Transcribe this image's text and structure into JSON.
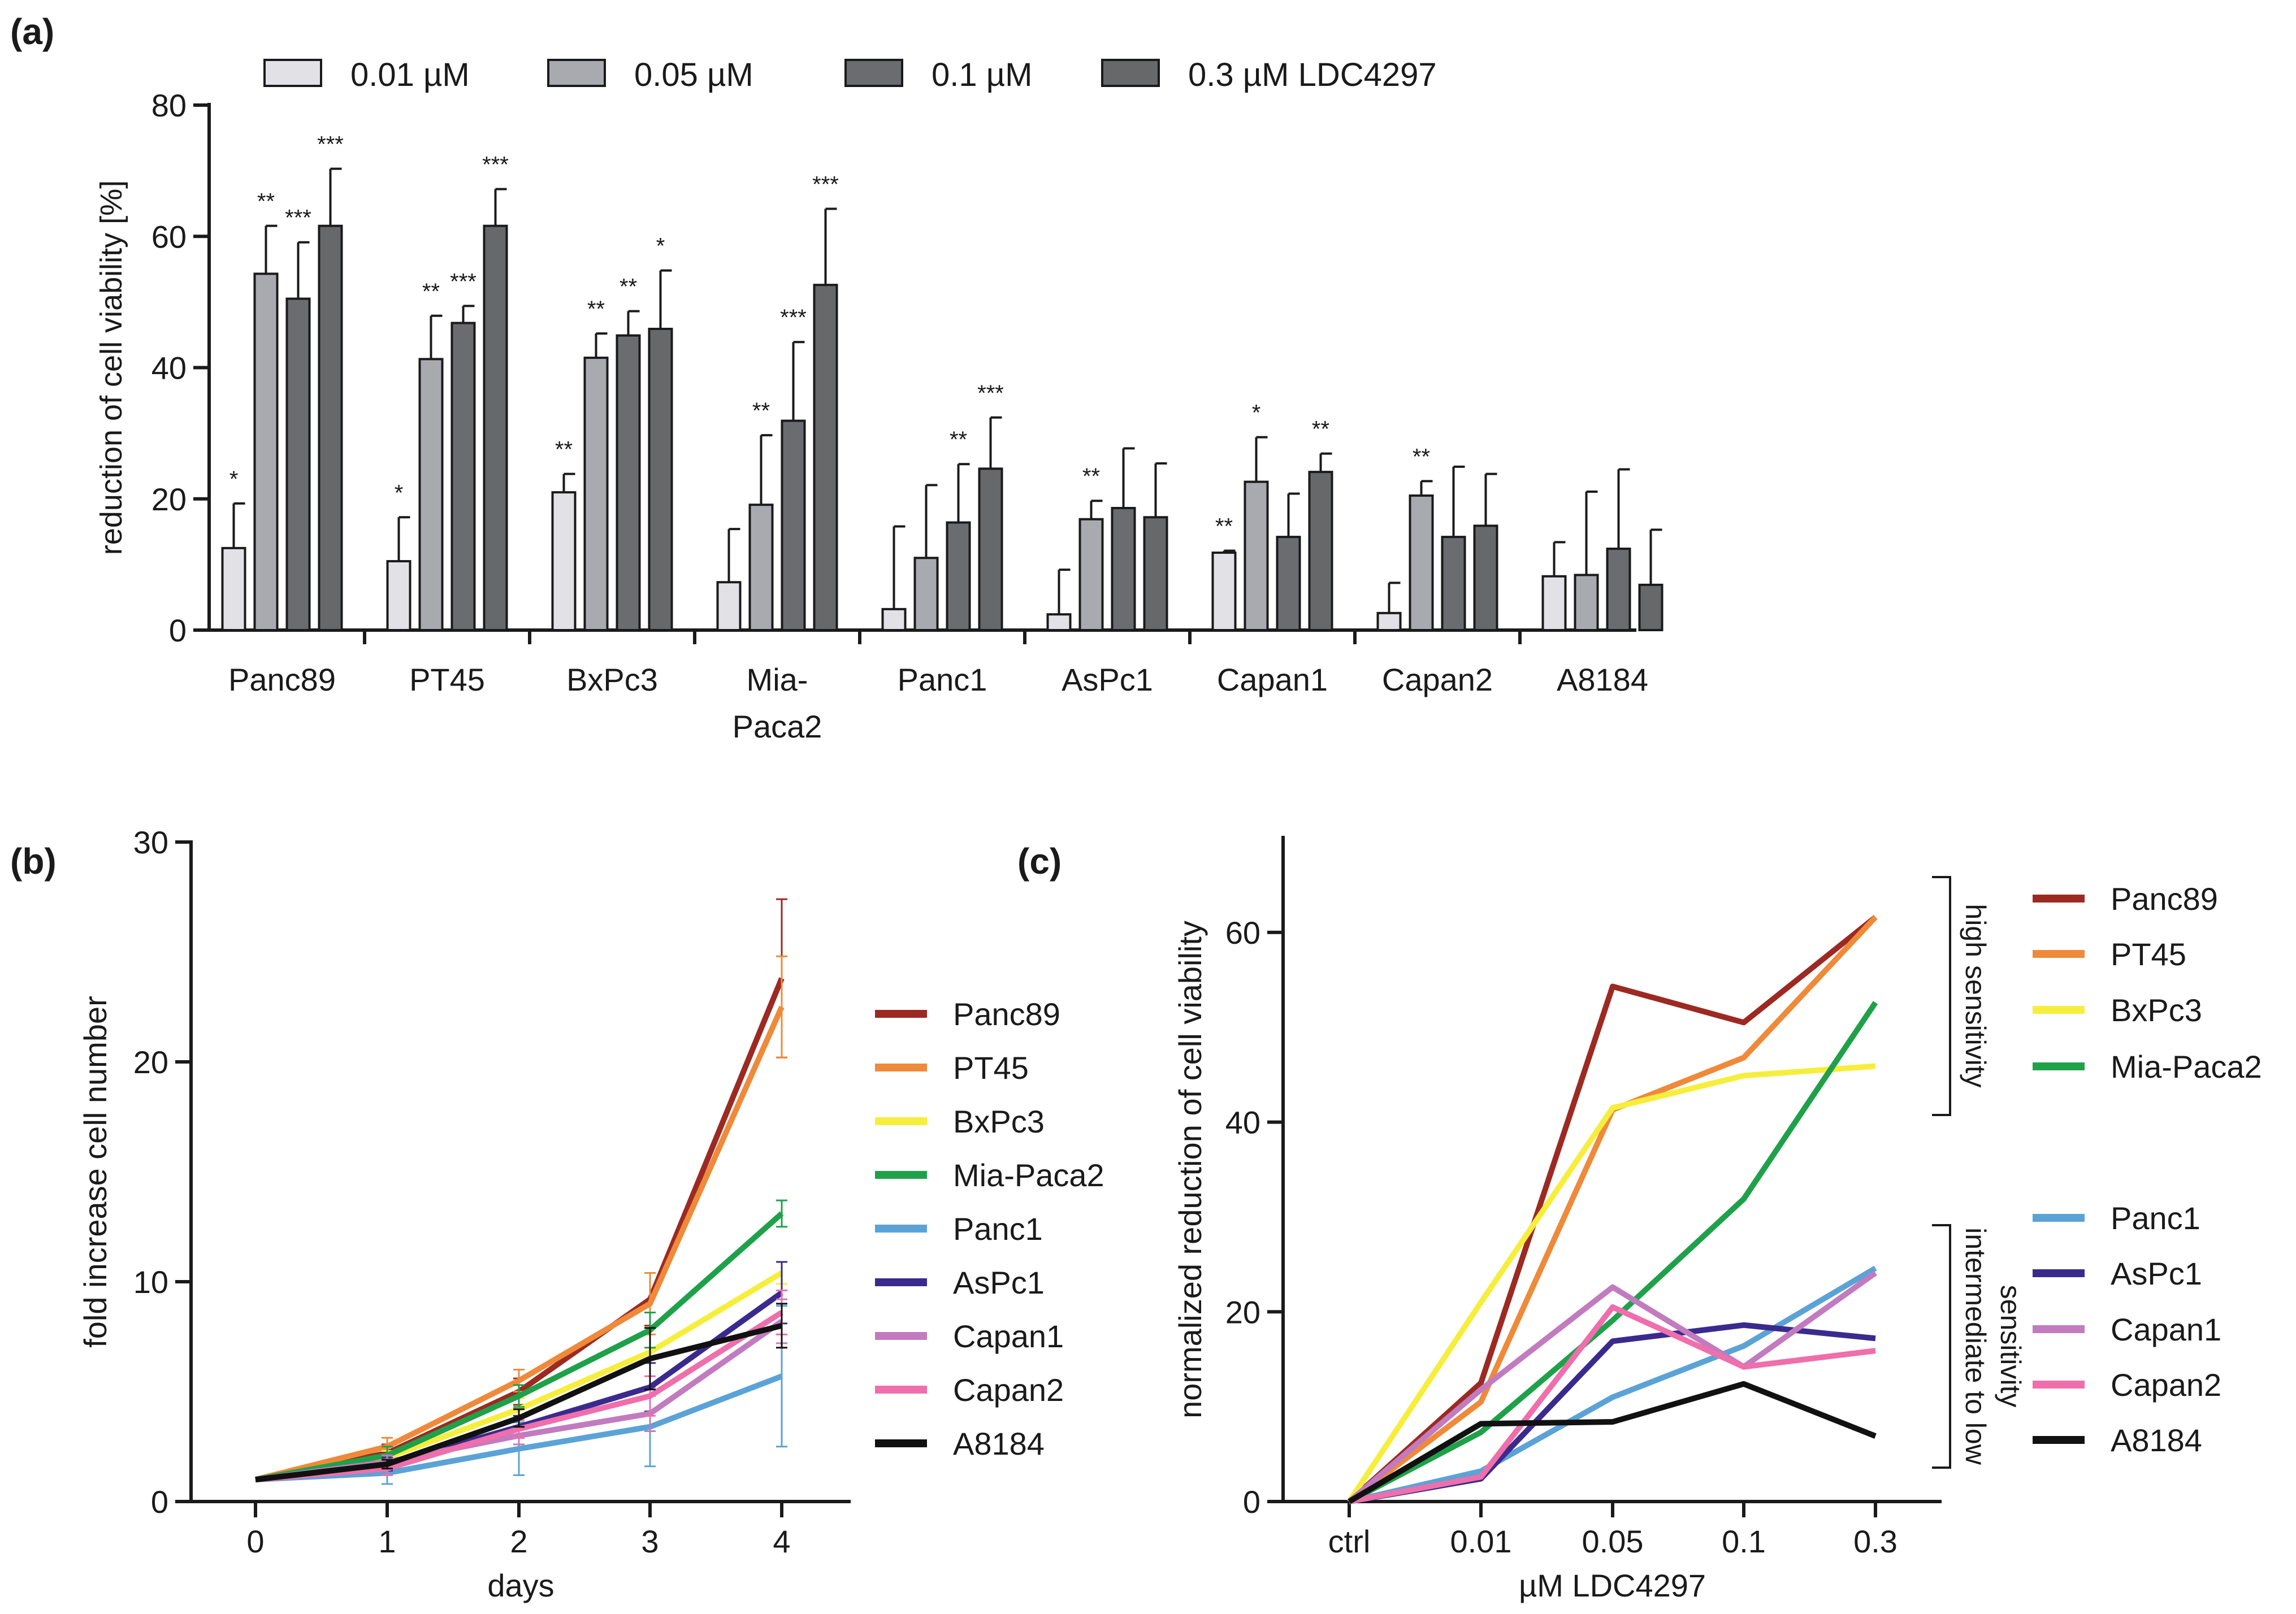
{
  "colors": {
    "c001": "#e2e2e6",
    "c005": "#a9aab0",
    "c01": "#6a6c6f",
    "c03": "#66686a",
    "Panc89": "#9c2a22",
    "PT45": "#ee8a3a",
    "BxPc3": "#f6ee3c",
    "Mia-Paca2": "#1fa14a",
    "Panc1": "#5ba3d6",
    "AsPc1": "#3b2a8e",
    "Capan1": "#c27bbf",
    "Capan2": "#ee6fab",
    "A8184": "#111111"
  },
  "chart_data": [
    {
      "panel": "(a)",
      "type": "bar",
      "ylabel": "reduction of cell viability [%]",
      "xlabel": "",
      "ylim": [
        0,
        80
      ],
      "yticks": [
        "0",
        "20",
        "40",
        "60",
        "80"
      ],
      "legend_position": "top",
      "legend": [
        "0.01 µM",
        "0.05 µM",
        "0.1 µM",
        "0.3 µM  LDC4297"
      ],
      "categories": [
        {
          "line1": "Panc89",
          "line2": ""
        },
        {
          "line1": "PT45",
          "line2": ""
        },
        {
          "line1": "BxPc3",
          "line2": ""
        },
        {
          "line1": "Mia-",
          "line2": "Paca2"
        },
        {
          "line1": "Panc1",
          "line2": ""
        },
        {
          "line1": "AsPc1",
          "line2": ""
        },
        {
          "line1": "Capan1",
          "line2": ""
        },
        {
          "line1": "Capan2",
          "line2": ""
        },
        {
          "line1": "A8184",
          "line2": ""
        }
      ],
      "series": [
        {
          "name": "0.01 µM",
          "color_key": "c001",
          "values": [
            12.5,
            10.5,
            21,
            7.3,
            3.2,
            2.4,
            11.8,
            2.6,
            8.2
          ],
          "errors": [
            6.8,
            6.7,
            2.8,
            8.1,
            12.6,
            6.8,
            0.3,
            4.6,
            5.2
          ],
          "sig": [
            "*",
            "*",
            "**",
            "",
            "",
            "",
            "**",
            "",
            ""
          ]
        },
        {
          "name": "0.05 µM",
          "color_key": "c005",
          "values": [
            54.3,
            41.3,
            41.5,
            19.1,
            11,
            16.9,
            22.6,
            20.5,
            8.4
          ],
          "errors": [
            7.3,
            6.6,
            3.7,
            10.6,
            11.1,
            2.8,
            6.8,
            2.2,
            12.7
          ],
          "sig": [
            "**",
            "**",
            "**",
            "**",
            "",
            "**",
            "*",
            "**",
            ""
          ]
        },
        {
          "name": "0.1 µM",
          "color_key": "c01",
          "values": [
            50.5,
            46.8,
            44.9,
            31.9,
            16.4,
            18.6,
            14.2,
            14.2,
            12.4
          ],
          "errors": [
            8.6,
            2.6,
            3.7,
            12,
            8.9,
            9.1,
            6.6,
            10.7,
            12.1
          ],
          "sig": [
            "***",
            "***",
            "**",
            "***",
            "**",
            "",
            "",
            "",
            ""
          ]
        },
        {
          "name": "0.3 µM  LDC4297",
          "color_key": "c03",
          "values": [
            61.6,
            61.6,
            45.9,
            52.6,
            24.6,
            17.2,
            24.1,
            15.9,
            6.9
          ],
          "errors": [
            8.7,
            5.6,
            8.9,
            11.6,
            7.8,
            8.2,
            2.8,
            7.9,
            8.4
          ],
          "sig": [
            "***",
            "***",
            "*",
            "***",
            "***",
            "",
            "**",
            "",
            ""
          ]
        }
      ]
    },
    {
      "panel": "(b)",
      "type": "line",
      "xlabel": "days",
      "ylabel": "fold increase cell number",
      "x": [
        0,
        1,
        2,
        3,
        4
      ],
      "xticks": [
        "0",
        "1",
        "2",
        "3",
        "4"
      ],
      "ylim": [
        0,
        30
      ],
      "yticks": [
        "0",
        "10",
        "20",
        "30"
      ],
      "legend_position": "right",
      "series": [
        {
          "name": "Panc89",
          "values": [
            1,
            2.2,
            5,
            9.2,
            23.8
          ],
          "errors": [
            0,
            0.4,
            0.6,
            1.2,
            3.6
          ]
        },
        {
          "name": "PT45",
          "values": [
            1,
            2.5,
            5.5,
            9,
            22.5
          ],
          "errors": [
            0,
            0.4,
            0.5,
            1.4,
            2.3
          ]
        },
        {
          "name": "BxPc3",
          "values": [
            1,
            2,
            4.2,
            6.8,
            10.4
          ],
          "errors": [
            0,
            0.3,
            0.5,
            1.1,
            0.5
          ]
        },
        {
          "name": "Mia-Paca2",
          "values": [
            1,
            2.1,
            4.8,
            7.8,
            13.1
          ],
          "errors": [
            0,
            0.4,
            0.5,
            0.8,
            0.6
          ]
        },
        {
          "name": "Panc1",
          "values": [
            1,
            1.3,
            2.4,
            3.4,
            5.7
          ],
          "errors": [
            0,
            0.5,
            1.2,
            1.8,
            3.2
          ]
        },
        {
          "name": "AsPc1",
          "values": [
            1,
            1.7,
            3.4,
            5.2,
            9.5
          ],
          "errors": [
            0,
            0.3,
            0.5,
            1.1,
            1.4
          ]
        },
        {
          "name": "Capan1",
          "values": [
            1,
            1.8,
            3,
            4,
            8.2
          ],
          "errors": [
            0,
            0.3,
            0.4,
            0.8,
            1
          ]
        },
        {
          "name": "Capan2",
          "values": [
            1,
            1.5,
            3.3,
            4.8,
            8.6
          ],
          "errors": [
            0,
            0.3,
            0.4,
            0.9,
            1
          ]
        },
        {
          "name": "A8184",
          "values": [
            1,
            1.7,
            3.8,
            6.5,
            8
          ],
          "errors": [
            0,
            0.2,
            0.4,
            1.4,
            1
          ]
        }
      ]
    },
    {
      "panel": "(c)",
      "type": "line",
      "xlabel": "µM LDC4297",
      "ylabel": "normalized reduction of cell viability",
      "x": [
        "ctrl",
        "0.01",
        "0.05",
        "0.1",
        "0.3"
      ],
      "xticks": [
        "ctrl",
        "0.01",
        "0.05",
        "0.1",
        "0.3"
      ],
      "ylim": [
        0,
        70
      ],
      "yticks": [
        "0",
        "20",
        "40",
        "60"
      ],
      "legend_position": "right",
      "groups": [
        "high sensitivity",
        "intermediate to low",
        "sensitivity"
      ],
      "series": [
        {
          "name": "Panc89",
          "values": [
            0,
            12.5,
            54.3,
            50.5,
            61.6
          ]
        },
        {
          "name": "PT45",
          "values": [
            0,
            10.5,
            41.3,
            46.8,
            61.6
          ]
        },
        {
          "name": "BxPc3",
          "values": [
            0,
            21,
            41.5,
            44.9,
            45.9
          ]
        },
        {
          "name": "Mia-Paca2",
          "values": [
            0,
            7.3,
            19.1,
            31.9,
            52.6
          ]
        },
        {
          "name": "Panc1",
          "values": [
            0,
            3.2,
            11,
            16.4,
            24.6
          ]
        },
        {
          "name": "AsPc1",
          "values": [
            0,
            2.4,
            16.9,
            18.6,
            17.2
          ]
        },
        {
          "name": "Capan1",
          "values": [
            0,
            11.8,
            22.6,
            14.2,
            24.1
          ]
        },
        {
          "name": "Capan2",
          "values": [
            0,
            2.6,
            20.5,
            14.2,
            15.9
          ]
        },
        {
          "name": "A8184",
          "values": [
            0,
            8.2,
            8.4,
            12.4,
            6.9
          ]
        }
      ]
    }
  ]
}
